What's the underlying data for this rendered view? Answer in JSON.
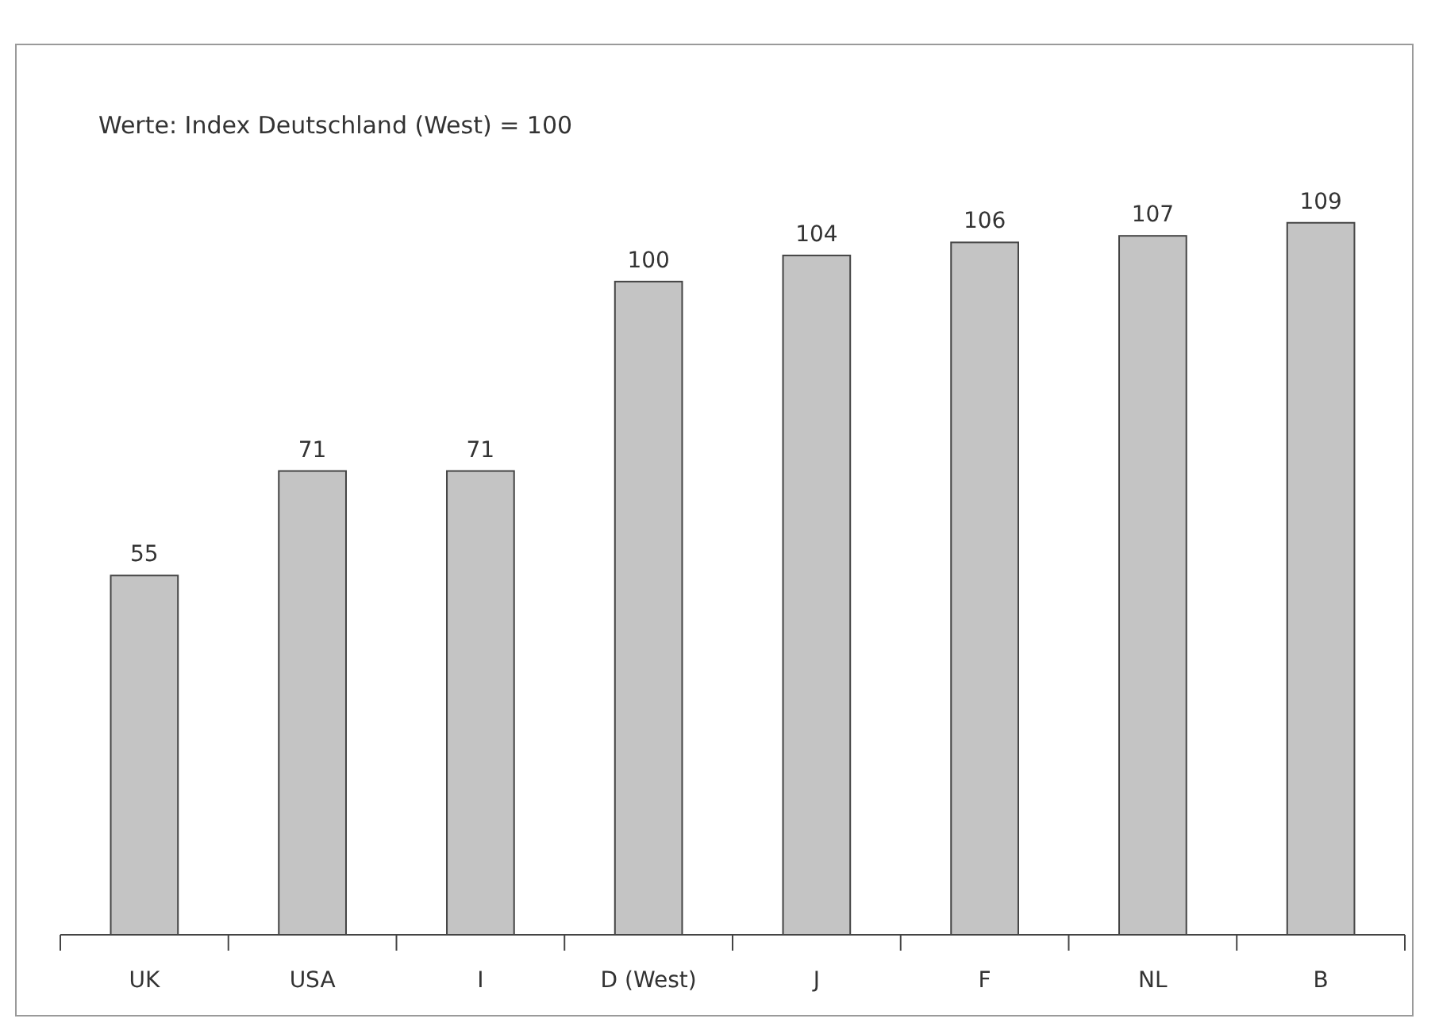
{
  "chart_data": {
    "type": "bar",
    "title": "Werte: Index Deutschland (West) = 100",
    "categories": [
      "UK",
      "USA",
      "I",
      "D (West)",
      "J",
      "F",
      "NL",
      "B"
    ],
    "values": [
      55,
      71,
      71,
      100,
      104,
      106,
      107,
      109
    ],
    "color": "#c4c4c4",
    "data_labels": true
  }
}
